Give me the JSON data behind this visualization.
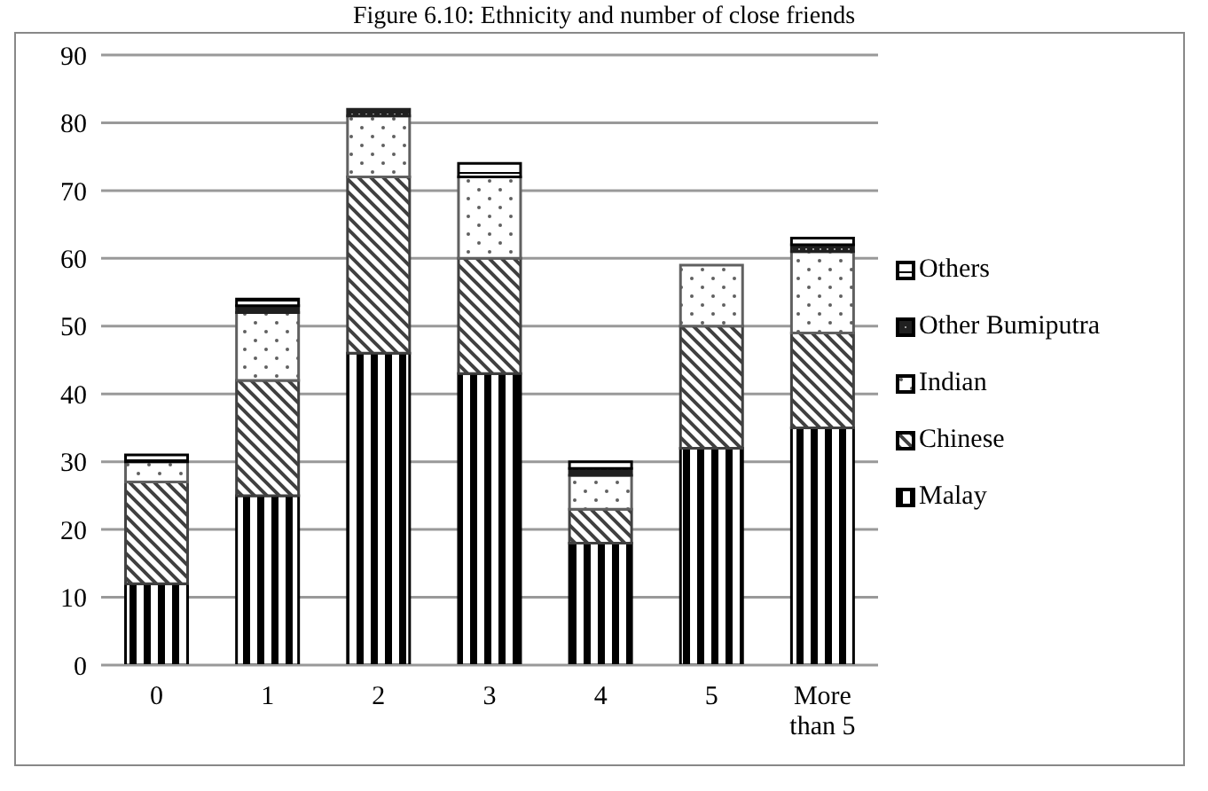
{
  "chart_data": {
    "type": "bar",
    "title": "Figure 6.10: Ethnicity and number of close friends",
    "stacked": true,
    "categories": [
      "0",
      "1",
      "2",
      "3",
      "4",
      "5",
      "More than 5"
    ],
    "series": [
      {
        "name": "Malay",
        "color": "#000000",
        "values": [
          12,
          25,
          46,
          43,
          18,
          32,
          35
        ]
      },
      {
        "name": "Chinese",
        "color": "#404040",
        "values": [
          15,
          17,
          26,
          17,
          5,
          18,
          14
        ]
      },
      {
        "name": "Indian",
        "color": "#606060",
        "values": [
          3,
          10,
          9,
          12,
          5,
          9,
          12
        ]
      },
      {
        "name": "Other Bumiputra",
        "color": "#202020",
        "values": [
          0,
          1,
          1,
          0,
          1,
          0,
          1
        ]
      },
      {
        "name": "Others",
        "color": "#000000",
        "values": [
          1,
          1,
          0,
          2,
          1,
          0,
          1
        ]
      }
    ],
    "ylim": [
      0,
      90
    ],
    "yticks": [
      0,
      10,
      20,
      30,
      40,
      50,
      60,
      70,
      80,
      90
    ],
    "grid": "y",
    "legend": "right"
  }
}
